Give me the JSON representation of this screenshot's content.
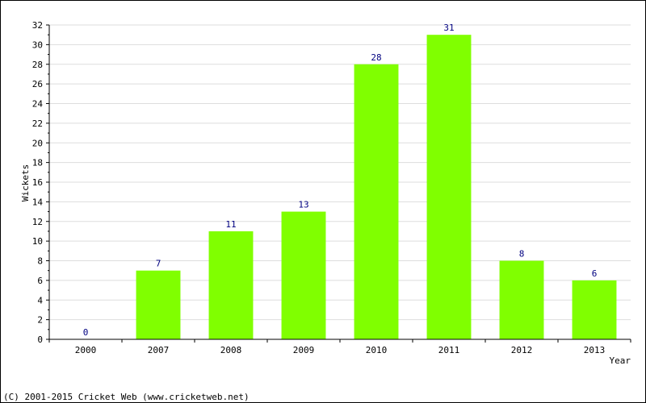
{
  "chart_data": {
    "type": "bar",
    "title": "",
    "xlabel": "Year",
    "ylabel": "Wickets",
    "categories": [
      "2000",
      "2007",
      "2008",
      "2009",
      "2010",
      "2011",
      "2012",
      "2013"
    ],
    "values": [
      0,
      7,
      11,
      13,
      28,
      31,
      8,
      6
    ],
    "data_labels": [
      "0",
      "7",
      "11",
      "13",
      "28",
      "31",
      "8",
      "6"
    ],
    "ylim": [
      0,
      32
    ],
    "y_ticks": [
      "0",
      "2",
      "4",
      "6",
      "8",
      "10",
      "12",
      "14",
      "16",
      "18",
      "20",
      "22",
      "24",
      "26",
      "28",
      "30",
      "32"
    ],
    "grid": true,
    "legend": "none",
    "bar_color": "#80ff00",
    "label_color": "#000080",
    "grid_color": "#dddddd"
  },
  "footer": {
    "copyright": "(C) 2001-2015 Cricket Web (www.cricketweb.net)"
  }
}
